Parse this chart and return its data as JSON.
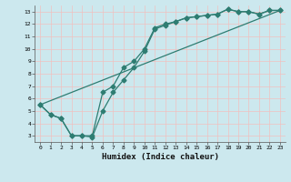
{
  "title": "",
  "xlabel": "Humidex (Indice chaleur)",
  "xlim": [
    -0.5,
    23.5
  ],
  "ylim": [
    2.5,
    13.5
  ],
  "xticks": [
    0,
    1,
    2,
    3,
    4,
    5,
    6,
    7,
    8,
    9,
    10,
    11,
    12,
    13,
    14,
    15,
    16,
    17,
    18,
    19,
    20,
    21,
    22,
    23
  ],
  "yticks": [
    3,
    4,
    5,
    6,
    7,
    8,
    9,
    10,
    11,
    12,
    13
  ],
  "bg_color": "#cce8ee",
  "line_color": "#2e7d72",
  "grid_color": "#f0c0c0",
  "line1_x": [
    0,
    1,
    2,
    3,
    4,
    5,
    6,
    7,
    8,
    9,
    10,
    11,
    12,
    13,
    14,
    15,
    16,
    17,
    18,
    19,
    20,
    21,
    22,
    23
  ],
  "line1_y": [
    5.5,
    4.7,
    4.4,
    3.0,
    3.0,
    3.0,
    6.5,
    7.0,
    8.5,
    9.0,
    10.0,
    11.7,
    12.0,
    12.2,
    12.5,
    12.6,
    12.7,
    12.8,
    13.2,
    13.0,
    13.0,
    12.8,
    13.1,
    13.1
  ],
  "line2_x": [
    0,
    1,
    2,
    3,
    4,
    5,
    6,
    7,
    8,
    9,
    10,
    11,
    12,
    13,
    14,
    15,
    16,
    17,
    18,
    19,
    20,
    21,
    22,
    23
  ],
  "line2_y": [
    5.5,
    4.7,
    4.4,
    3.0,
    3.0,
    2.9,
    5.0,
    6.5,
    7.5,
    8.5,
    9.8,
    11.6,
    11.9,
    12.2,
    12.5,
    12.6,
    12.7,
    12.8,
    13.2,
    13.0,
    13.0,
    12.8,
    13.1,
    13.1
  ],
  "line3_x": [
    0,
    23
  ],
  "line3_y": [
    5.5,
    13.1
  ],
  "markersize": 2.5,
  "linewidth": 0.9
}
